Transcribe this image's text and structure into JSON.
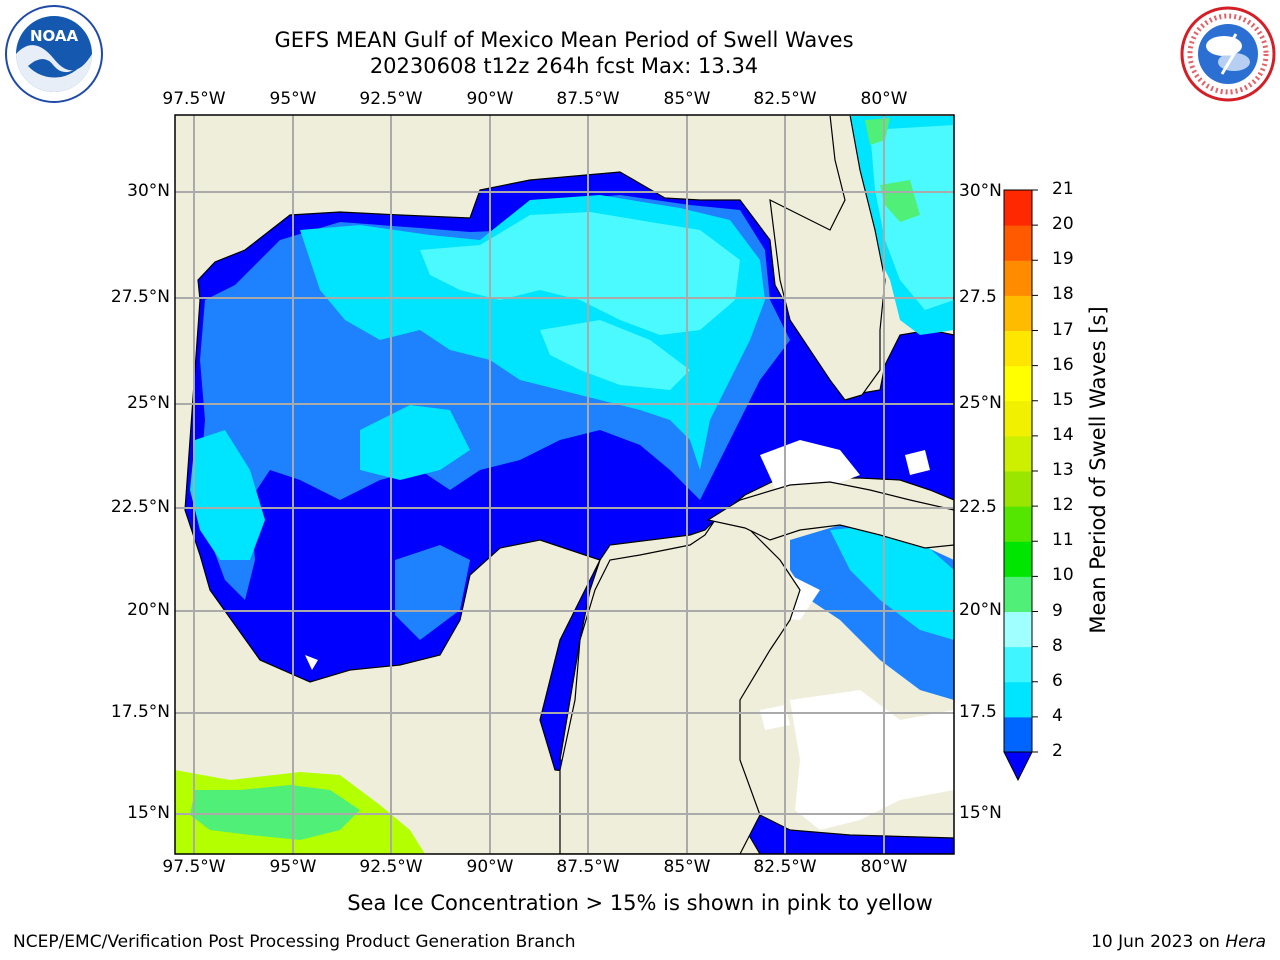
{
  "title_line1": "GEFS MEAN Gulf of Mexico Mean Period of Swell Waves",
  "title_line2": "20230608 t12z 264h fcst   Max: 13.34",
  "lon_labels": [
    "97.5°W",
    "95°W",
    "92.5°W",
    "90°W",
    "87.5°W",
    "85°W",
    "82.5°W",
    "80°W"
  ],
  "lat_labels_left": [
    "30°N",
    "27.5°N",
    "25°N",
    "22.5°N",
    "20°N",
    "17.5°N",
    "15°N"
  ],
  "lat_labels_right": [
    "30°N",
    "27.5",
    "25°N",
    "22.5",
    "20°N",
    "17.5",
    "15°N"
  ],
  "colorbar": {
    "label": "Mean Period of Swell Waves [s]",
    "ticks": [
      "2",
      "4",
      "6",
      "8",
      "9",
      "10",
      "11",
      "12",
      "13",
      "14",
      "15",
      "16",
      "17",
      "18",
      "19",
      "20",
      "21"
    ],
    "colors": [
      "#0064ff",
      "#00e5ff",
      "#3ff5ff",
      "#a0ffff",
      "#50f078",
      "#00e600",
      "#55e600",
      "#9ae600",
      "#ccf000",
      "#f0f000",
      "#ffff00",
      "#ffe600",
      "#ffbb00",
      "#ff8c00",
      "#ff5a00",
      "#ff2800"
    ],
    "under_color": "#0000ff"
  },
  "colors": {
    "land": "#efeedb",
    "deep_blue": "#0000ff",
    "mid_blue": "#1e82ff",
    "cyan": "#00e5ff",
    "light_cyan": "#4bfaff",
    "green": "#50f078",
    "lime": "#b4ff00",
    "grid": "#aaaaaa"
  },
  "caption": "Sea Ice Concentration > 15% is shown in pink to yellow",
  "credit": "NCEP/EMC/Verification Post Processing Product Generation Branch",
  "date_text": "10 Jun 2023 on ",
  "date_machine": "Hera",
  "logos": {
    "left": "NOAA",
    "right": "NATIONAL WEATHER SERVICE"
  }
}
